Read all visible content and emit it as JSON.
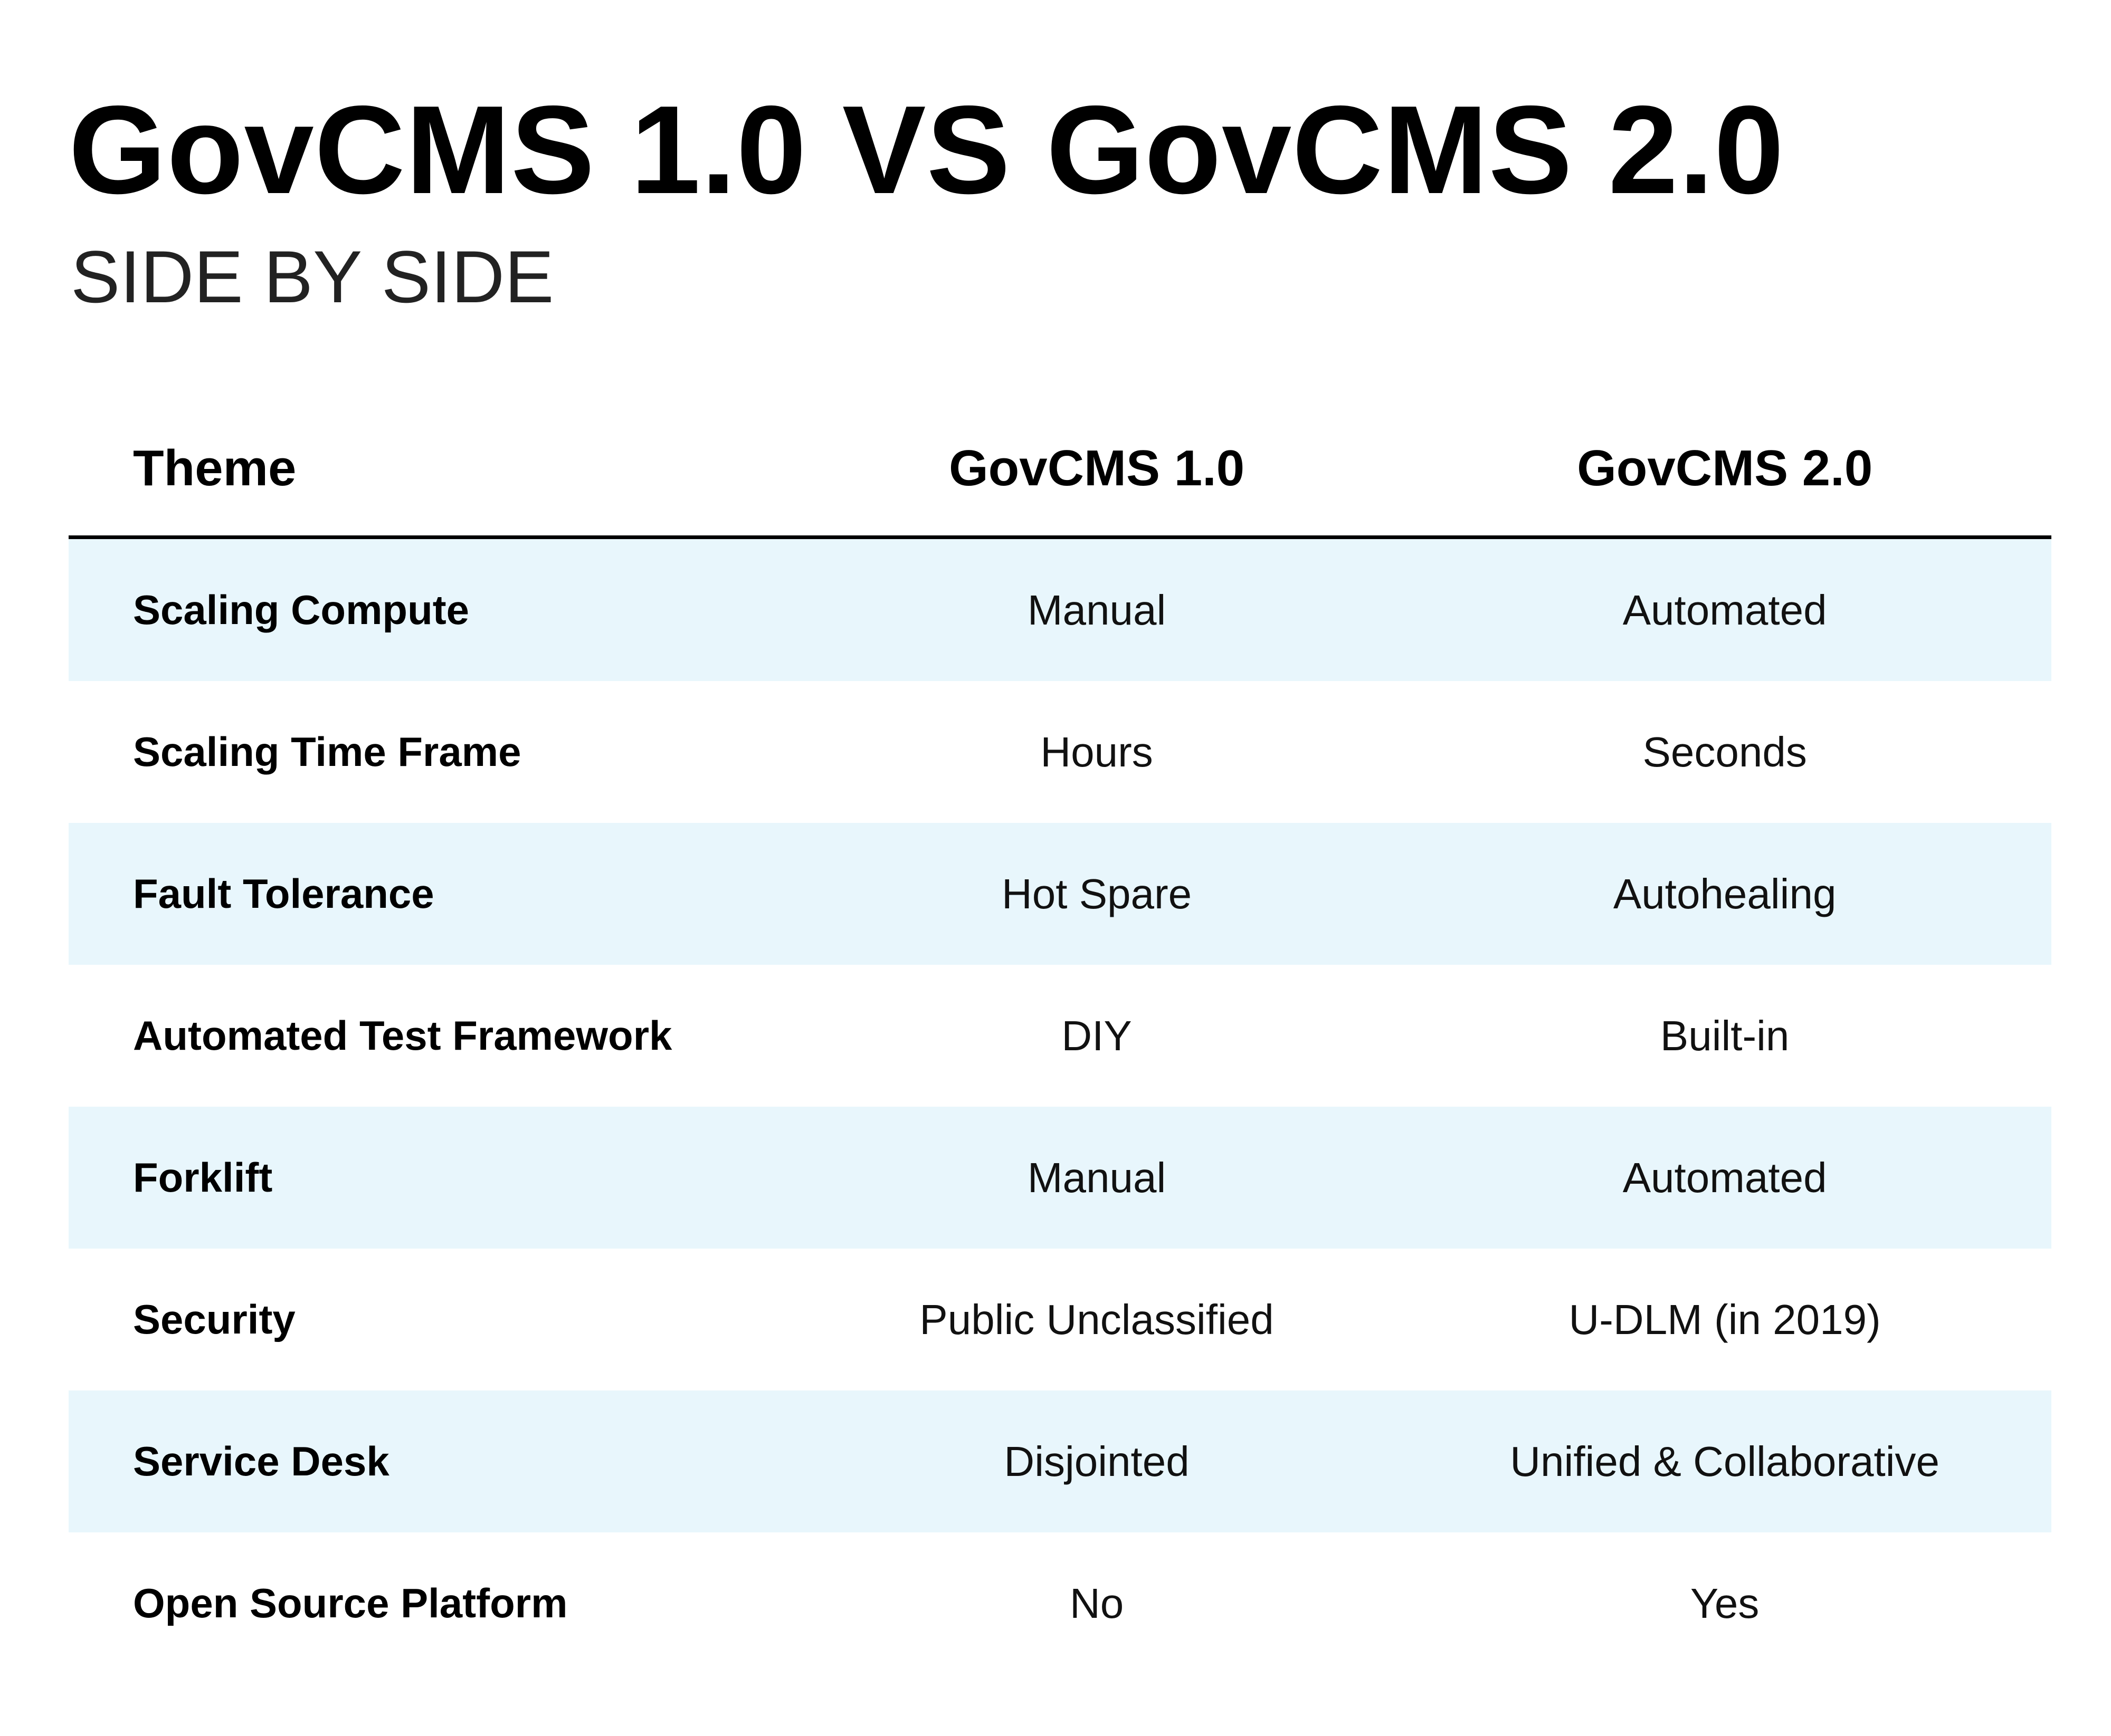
{
  "title": "GovCMS 1.0 VS GovCMS 2.0",
  "subtitle": "SIDE BY SIDE",
  "table": {
    "headers": [
      "Theme",
      "GovCMS 1.0",
      "GovCMS 2.0"
    ],
    "rows": [
      {
        "theme": "Scaling Compute",
        "v1": "Manual",
        "v2": "Automated"
      },
      {
        "theme": "Scaling Time Frame",
        "v1": "Hours",
        "v2": "Seconds"
      },
      {
        "theme": "Fault Tolerance",
        "v1": "Hot Spare",
        "v2": "Autohealing"
      },
      {
        "theme": "Automated Test Framework",
        "v1": "DIY",
        "v2": "Built-in"
      },
      {
        "theme": "Forklift",
        "v1": "Manual",
        "v2": "Automated"
      },
      {
        "theme": "Security",
        "v1": "Public Unclassified",
        "v2": "U-DLM (in 2019)"
      },
      {
        "theme": "Service Desk",
        "v1": "Disjointed",
        "v2": "Unified & Collaborative"
      },
      {
        "theme": "Open Source Platform",
        "v1": "No",
        "v2": "Yes"
      }
    ]
  },
  "colors": {
    "row_shade": "#e8f6fc",
    "text": "#000000",
    "rule": "#000000"
  }
}
